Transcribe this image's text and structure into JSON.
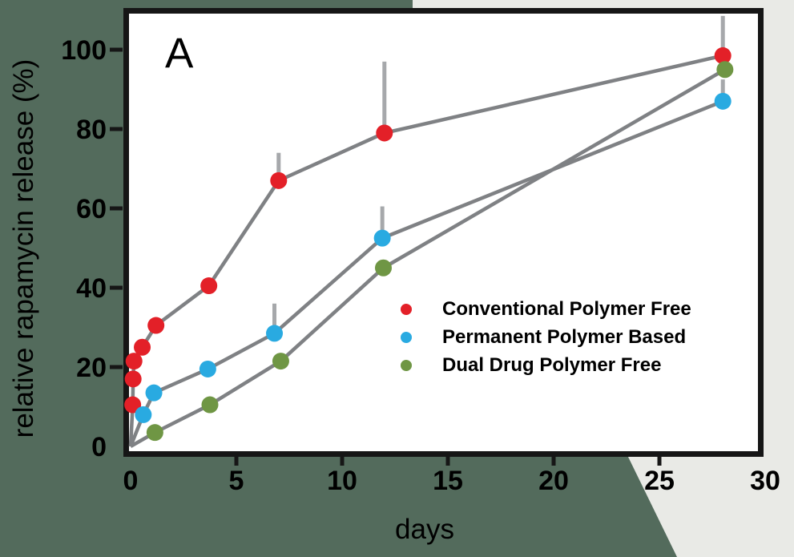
{
  "panel_label": "A",
  "colors": {
    "background": "#536b5c",
    "paper_corner": "#e9eae6",
    "plot_background": "#ffffff",
    "frame": "#161616",
    "series_line": "#7f8184",
    "error_bar": "#a6a8ab",
    "text": "#000000"
  },
  "axes": {
    "x_title": "days",
    "y_title": "relative rapamycin release (%)",
    "x_range": [
      0,
      30
    ],
    "y_range": [
      0,
      100
    ],
    "x_tick_labels": [
      0,
      5,
      10,
      15,
      20,
      25,
      30
    ],
    "x_tick_marks": [
      5,
      10,
      15,
      20,
      25
    ],
    "y_tick_labels": [
      0,
      20,
      40,
      60,
      80,
      100
    ],
    "y_tick_marks": [
      20,
      40,
      60,
      80,
      100
    ],
    "grid": "off"
  },
  "legend": {
    "position": "inside-right",
    "items": [
      {
        "label": "Conventional Polymer Free",
        "color": "#e32028"
      },
      {
        "label": "Permanent Polymer Based",
        "color": "#29aae1"
      },
      {
        "label": "Dual Drug Polymer Free",
        "color": "#6f9644"
      }
    ]
  },
  "chart_data": {
    "type": "line",
    "title": "",
    "xlabel": "days",
    "ylabel": "relative rapamycin release (%)",
    "xlim": [
      0,
      30
    ],
    "ylim": [
      0,
      100
    ],
    "legend_position": "inside-right",
    "series": [
      {
        "name": "Conventional Polymer Free",
        "color": "#e32028",
        "x": [
          0,
          0.1,
          0.12,
          0.16,
          0.55,
          1.2,
          3.7,
          7,
          12,
          28
        ],
        "y": [
          0,
          10.5,
          17,
          21.5,
          25,
          30.5,
          40.5,
          67,
          79,
          98.5
        ],
        "err_up": [
          0,
          0,
          0,
          0,
          0,
          0,
          0,
          7,
          18,
          10
        ]
      },
      {
        "name": "Permanent Polymer Based",
        "color": "#29aae1",
        "x": [
          0,
          0.6,
          1.1,
          3.65,
          6.8,
          11.9,
          28
        ],
        "y": [
          0,
          8,
          13.5,
          19.5,
          28.5,
          52.5,
          87
        ],
        "err_up": [
          0,
          0,
          0,
          0,
          7.5,
          8,
          5.5
        ]
      },
      {
        "name": "Dual Drug Polymer Free",
        "color": "#6f9644",
        "x": [
          0,
          1.15,
          3.75,
          7.1,
          11.95,
          28.1
        ],
        "y": [
          0,
          3.5,
          10.5,
          21.5,
          45,
          95
        ],
        "err_up": [
          0,
          0,
          0,
          0,
          0,
          0
        ]
      }
    ]
  }
}
